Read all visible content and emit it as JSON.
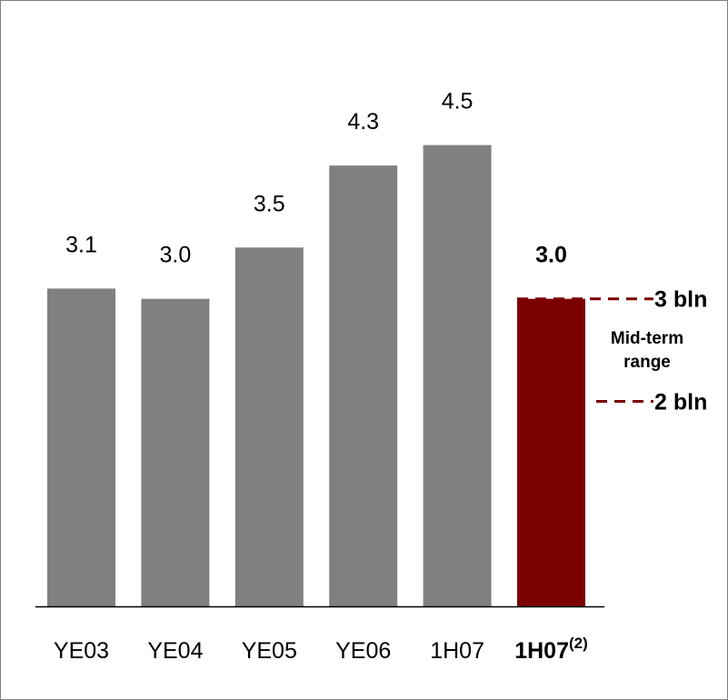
{
  "chart_data": {
    "type": "bar",
    "categories": [
      "YE03",
      "YE04",
      "YE05",
      "YE06",
      "1H07",
      "1H07"
    ],
    "category_superscripts": [
      "",
      "",
      "",
      "",
      "",
      "(2)"
    ],
    "values": [
      3.1,
      3.0,
      3.5,
      4.3,
      4.5,
      3.0
    ],
    "value_labels": [
      "3.1",
      "3.0",
      "3.5",
      "4.3",
      "4.5",
      "3.0"
    ],
    "highlight_index": 5,
    "ylim": [
      0,
      5.8
    ],
    "grid": false,
    "legend": "none",
    "colors": {
      "bar": "#808080",
      "highlight": "#7b0000",
      "reference": "#7b0000"
    },
    "reference_lines": [
      {
        "value": 3,
        "label": "3 bln"
      },
      {
        "value": 2,
        "label": "2 bln"
      }
    ],
    "annotation": {
      "lines": [
        "Mid-term",
        "range"
      ]
    }
  }
}
